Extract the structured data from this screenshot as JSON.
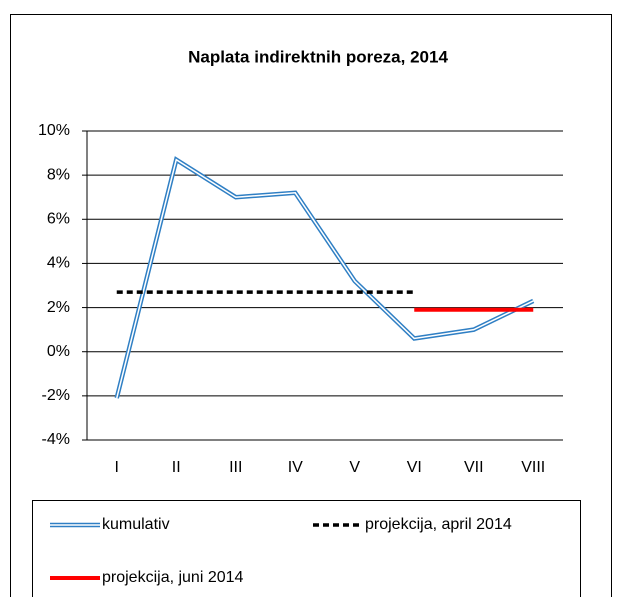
{
  "chart_data": {
    "type": "line",
    "title": "Naplata indirektnih poreza,  2014",
    "categories": [
      "I",
      "II",
      "III",
      "IV",
      "V",
      "VI",
      "VII",
      "VIII"
    ],
    "series": [
      {
        "name": "kumulativ",
        "color": "#2f7fc4",
        "values": [
          -2.1,
          8.7,
          7.0,
          7.2,
          3.2,
          0.6,
          1.0,
          2.3
        ]
      },
      {
        "name": "projekcija, april 2014",
        "color": "#000000",
        "values": [
          2.7,
          2.7,
          2.7,
          2.7,
          2.7,
          2.7,
          null,
          null
        ]
      },
      {
        "name": "projekcija, juni 2014",
        "color": "#ff0000",
        "values": [
          null,
          null,
          null,
          null,
          null,
          1.9,
          1.9,
          1.9
        ]
      }
    ],
    "ylim": [
      -4,
      10
    ],
    "yticks": [
      {
        "value": -4,
        "label": "-4%"
      },
      {
        "value": -2,
        "label": "-2%"
      },
      {
        "value": 0,
        "label": "0%"
      },
      {
        "value": 2,
        "label": "2%"
      },
      {
        "value": 4,
        "label": "4%"
      },
      {
        "value": 6,
        "label": "6%"
      },
      {
        "value": 8,
        "label": "8%"
      },
      {
        "value": 10,
        "label": "10%"
      }
    ],
    "grid": true,
    "legend": "bottom"
  }
}
